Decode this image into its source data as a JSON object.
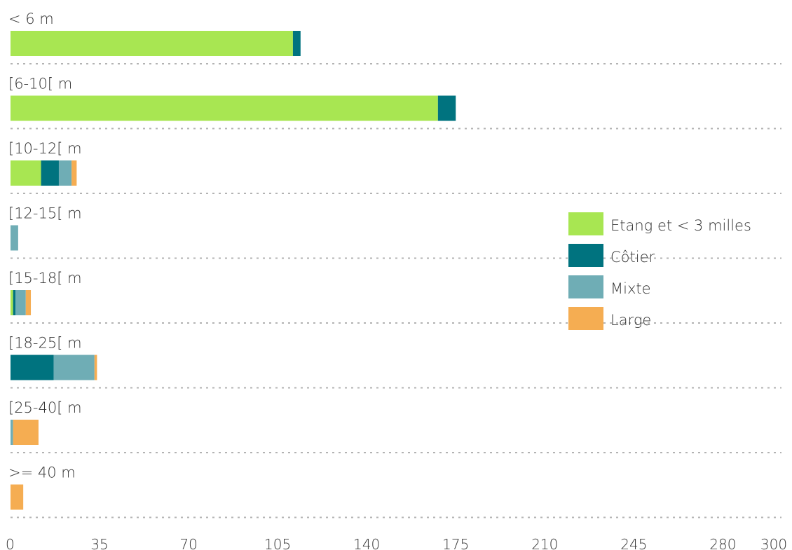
{
  "chart_data": {
    "type": "bar",
    "orientation": "horizontal",
    "stacked": true,
    "categories": [
      "< 6 m",
      "[6-10[ m",
      "[10-12[ m",
      "[12-15[ m",
      "[15-18[ m",
      "[18-25[ m",
      "[25-40[ m",
      ">= 40 m"
    ],
    "series": [
      {
        "name": "Etang et < 3 milles",
        "color": "#a8e652",
        "values": [
          111,
          168,
          12,
          0,
          1,
          0,
          0,
          0
        ]
      },
      {
        "name": "Côtier",
        "color": "#00737f",
        "values": [
          3,
          7,
          7,
          0,
          1,
          17,
          0,
          0
        ]
      },
      {
        "name": "Mixte",
        "color": "#6fadb5",
        "values": [
          0,
          0,
          5,
          3,
          4,
          16,
          1,
          0
        ]
      },
      {
        "name": "Large",
        "color": "#f5ad52",
        "values": [
          0,
          0,
          2,
          0,
          2,
          1,
          10,
          5
        ]
      }
    ],
    "xlim": [
      0,
      300
    ],
    "xticks": [
      "0",
      "35",
      "70",
      "105",
      "140",
      "175",
      "210",
      "245",
      "280",
      "300"
    ],
    "xtick_values": [
      0,
      35,
      70,
      105,
      140,
      175,
      210,
      245,
      280,
      300
    ],
    "legend_position": "right",
    "grid": "dotted horizontal separators between categories"
  }
}
